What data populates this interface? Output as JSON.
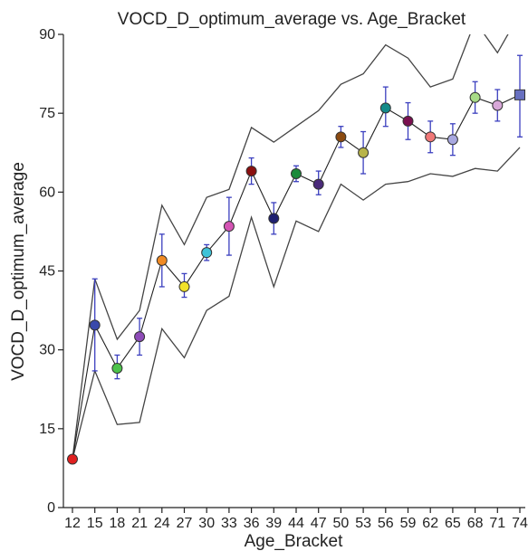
{
  "chart_data": {
    "type": "line",
    "title": "VOCD_D_optimum_average vs. Age_Bracket",
    "xlabel": "Age_Bracket",
    "ylabel": "VOCD_D_optimum_average",
    "ylim": [
      0,
      90
    ],
    "yticks": [
      0,
      15,
      30,
      45,
      60,
      75,
      90
    ],
    "categories": [
      "12",
      "15",
      "18",
      "21",
      "24",
      "27",
      "30",
      "33",
      "36",
      "39",
      "44",
      "47",
      "50",
      "53",
      "56",
      "59",
      "62",
      "65",
      "68",
      "71",
      "74"
    ],
    "series": [
      {
        "role": "mean",
        "values": [
          9.2,
          34.7,
          26.5,
          32.5,
          47.0,
          42.0,
          48.5,
          53.5,
          64.0,
          55.0,
          63.5,
          61.5,
          70.5,
          67.5,
          76.0,
          73.5,
          70.5,
          70.0,
          78.0,
          76.5,
          78.5
        ]
      },
      {
        "role": "error-high",
        "values": [
          9.2,
          43.5,
          29.0,
          36.0,
          52.0,
          44.5,
          50.0,
          59.0,
          66.5,
          58.0,
          65.0,
          64.0,
          72.5,
          71.5,
          80.0,
          77.0,
          73.5,
          73.0,
          81.0,
          79.5,
          86.0
        ]
      },
      {
        "role": "error-low",
        "values": [
          9.2,
          26.0,
          24.5,
          29.0,
          42.0,
          40.0,
          47.0,
          48.0,
          61.5,
          52.0,
          62.0,
          59.5,
          68.5,
          63.5,
          72.5,
          70.0,
          67.5,
          67.0,
          75.0,
          73.5,
          70.5
        ]
      },
      {
        "role": "band-upper",
        "values": [
          9.2,
          43.5,
          32.0,
          37.5,
          57.5,
          50.0,
          59.0,
          60.5,
          72.3,
          69.5,
          72.5,
          75.5,
          80.5,
          82.5,
          88.0,
          85.5,
          80.0,
          81.5,
          92.5,
          86.5,
          94.0
        ]
      },
      {
        "role": "band-lower",
        "values": [
          9.2,
          26.0,
          15.8,
          16.2,
          34.0,
          28.5,
          37.5,
          40.2,
          55.2,
          42.0,
          54.5,
          52.5,
          61.5,
          58.5,
          61.5,
          62.0,
          63.5,
          63.0,
          64.5,
          64.0,
          68.5
        ]
      }
    ],
    "marker_colors": [
      "#e02020",
      "#3949ab",
      "#4cc24c",
      "#8e4bb8",
      "#f08a24",
      "#f2e22a",
      "#3fc3d8",
      "#d454b4",
      "#8b1010",
      "#1e2070",
      "#1a8a3a",
      "#4a2a7a",
      "#8b4a10",
      "#b8b44a",
      "#148a8a",
      "#7a1050",
      "#f07878",
      "#a8a8e0",
      "#a8dc88",
      "#d8a8d8",
      "#6870c0"
    ],
    "marker_shapes": [
      "circle",
      "circle",
      "circle",
      "circle",
      "circle",
      "circle",
      "circle",
      "circle",
      "circle",
      "circle",
      "circle",
      "circle",
      "circle",
      "circle",
      "circle",
      "circle",
      "circle",
      "circle",
      "circle",
      "circle",
      "square"
    ],
    "grid": false,
    "legend": "none"
  }
}
